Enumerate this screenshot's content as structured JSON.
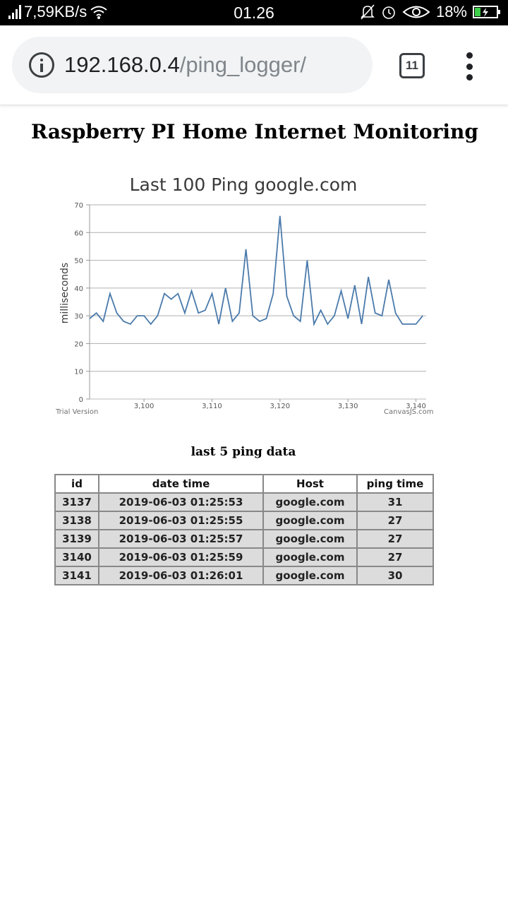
{
  "status_bar": {
    "speed": "7,59KB/s",
    "time": "01.26",
    "battery": "18%"
  },
  "browser": {
    "url_host": "192.168.0.4",
    "url_path": "/ping_logger/",
    "tab_count": "11"
  },
  "page": {
    "title": "Raspberry PI Home Internet Monitoring",
    "chart_watermark": "Trial Version",
    "chart_credit": "CanvasJS.com"
  },
  "chart_data": {
    "type": "line",
    "title": "Last 100 Ping google.com",
    "xlabel": "",
    "ylabel": "milliseconds",
    "ylim": [
      0,
      70
    ],
    "yticks": [
      0,
      10,
      20,
      30,
      40,
      50,
      60,
      70
    ],
    "xlim": [
      3092,
      3141.5
    ],
    "xticks": [
      3100,
      3110,
      3120,
      3130,
      3140
    ],
    "xtick_labels": [
      "3,100",
      "3,110",
      "3,120",
      "3,130",
      "3,140"
    ],
    "grid": true,
    "line_color": "#4a7aab",
    "x": [
      3092,
      3093,
      3094,
      3095,
      3096,
      3097,
      3098,
      3099,
      3100,
      3101,
      3102,
      3103,
      3104,
      3105,
      3106,
      3107,
      3108,
      3109,
      3110,
      3111,
      3112,
      3113,
      3114,
      3115,
      3116,
      3117,
      3118,
      3119,
      3120,
      3121,
      3122,
      3123,
      3124,
      3125,
      3126,
      3127,
      3128,
      3129,
      3130,
      3131,
      3132,
      3133,
      3134,
      3135,
      3136,
      3137,
      3138,
      3139,
      3140,
      3141
    ],
    "y": [
      29,
      31,
      28,
      38,
      31,
      28,
      27,
      30,
      30,
      27,
      30,
      38,
      36,
      38,
      31,
      39,
      31,
      32,
      38,
      27,
      40,
      28,
      31,
      54,
      30,
      28,
      29,
      38,
      66,
      37,
      30,
      28,
      50,
      27,
      32,
      27,
      30,
      39,
      29,
      41,
      27,
      44,
      31,
      30,
      43,
      31,
      27,
      27,
      27,
      30
    ]
  },
  "table": {
    "title": "last 5 ping data",
    "headers": [
      "id",
      "date time",
      "Host",
      "ping time"
    ],
    "rows": [
      [
        "3137",
        "2019-06-03 01:25:53",
        "google.com",
        "31"
      ],
      [
        "3138",
        "2019-06-03 01:25:55",
        "google.com",
        "27"
      ],
      [
        "3139",
        "2019-06-03 01:25:57",
        "google.com",
        "27"
      ],
      [
        "3140",
        "2019-06-03 01:25:59",
        "google.com",
        "27"
      ],
      [
        "3141",
        "2019-06-03 01:26:01",
        "google.com",
        "30"
      ]
    ]
  }
}
